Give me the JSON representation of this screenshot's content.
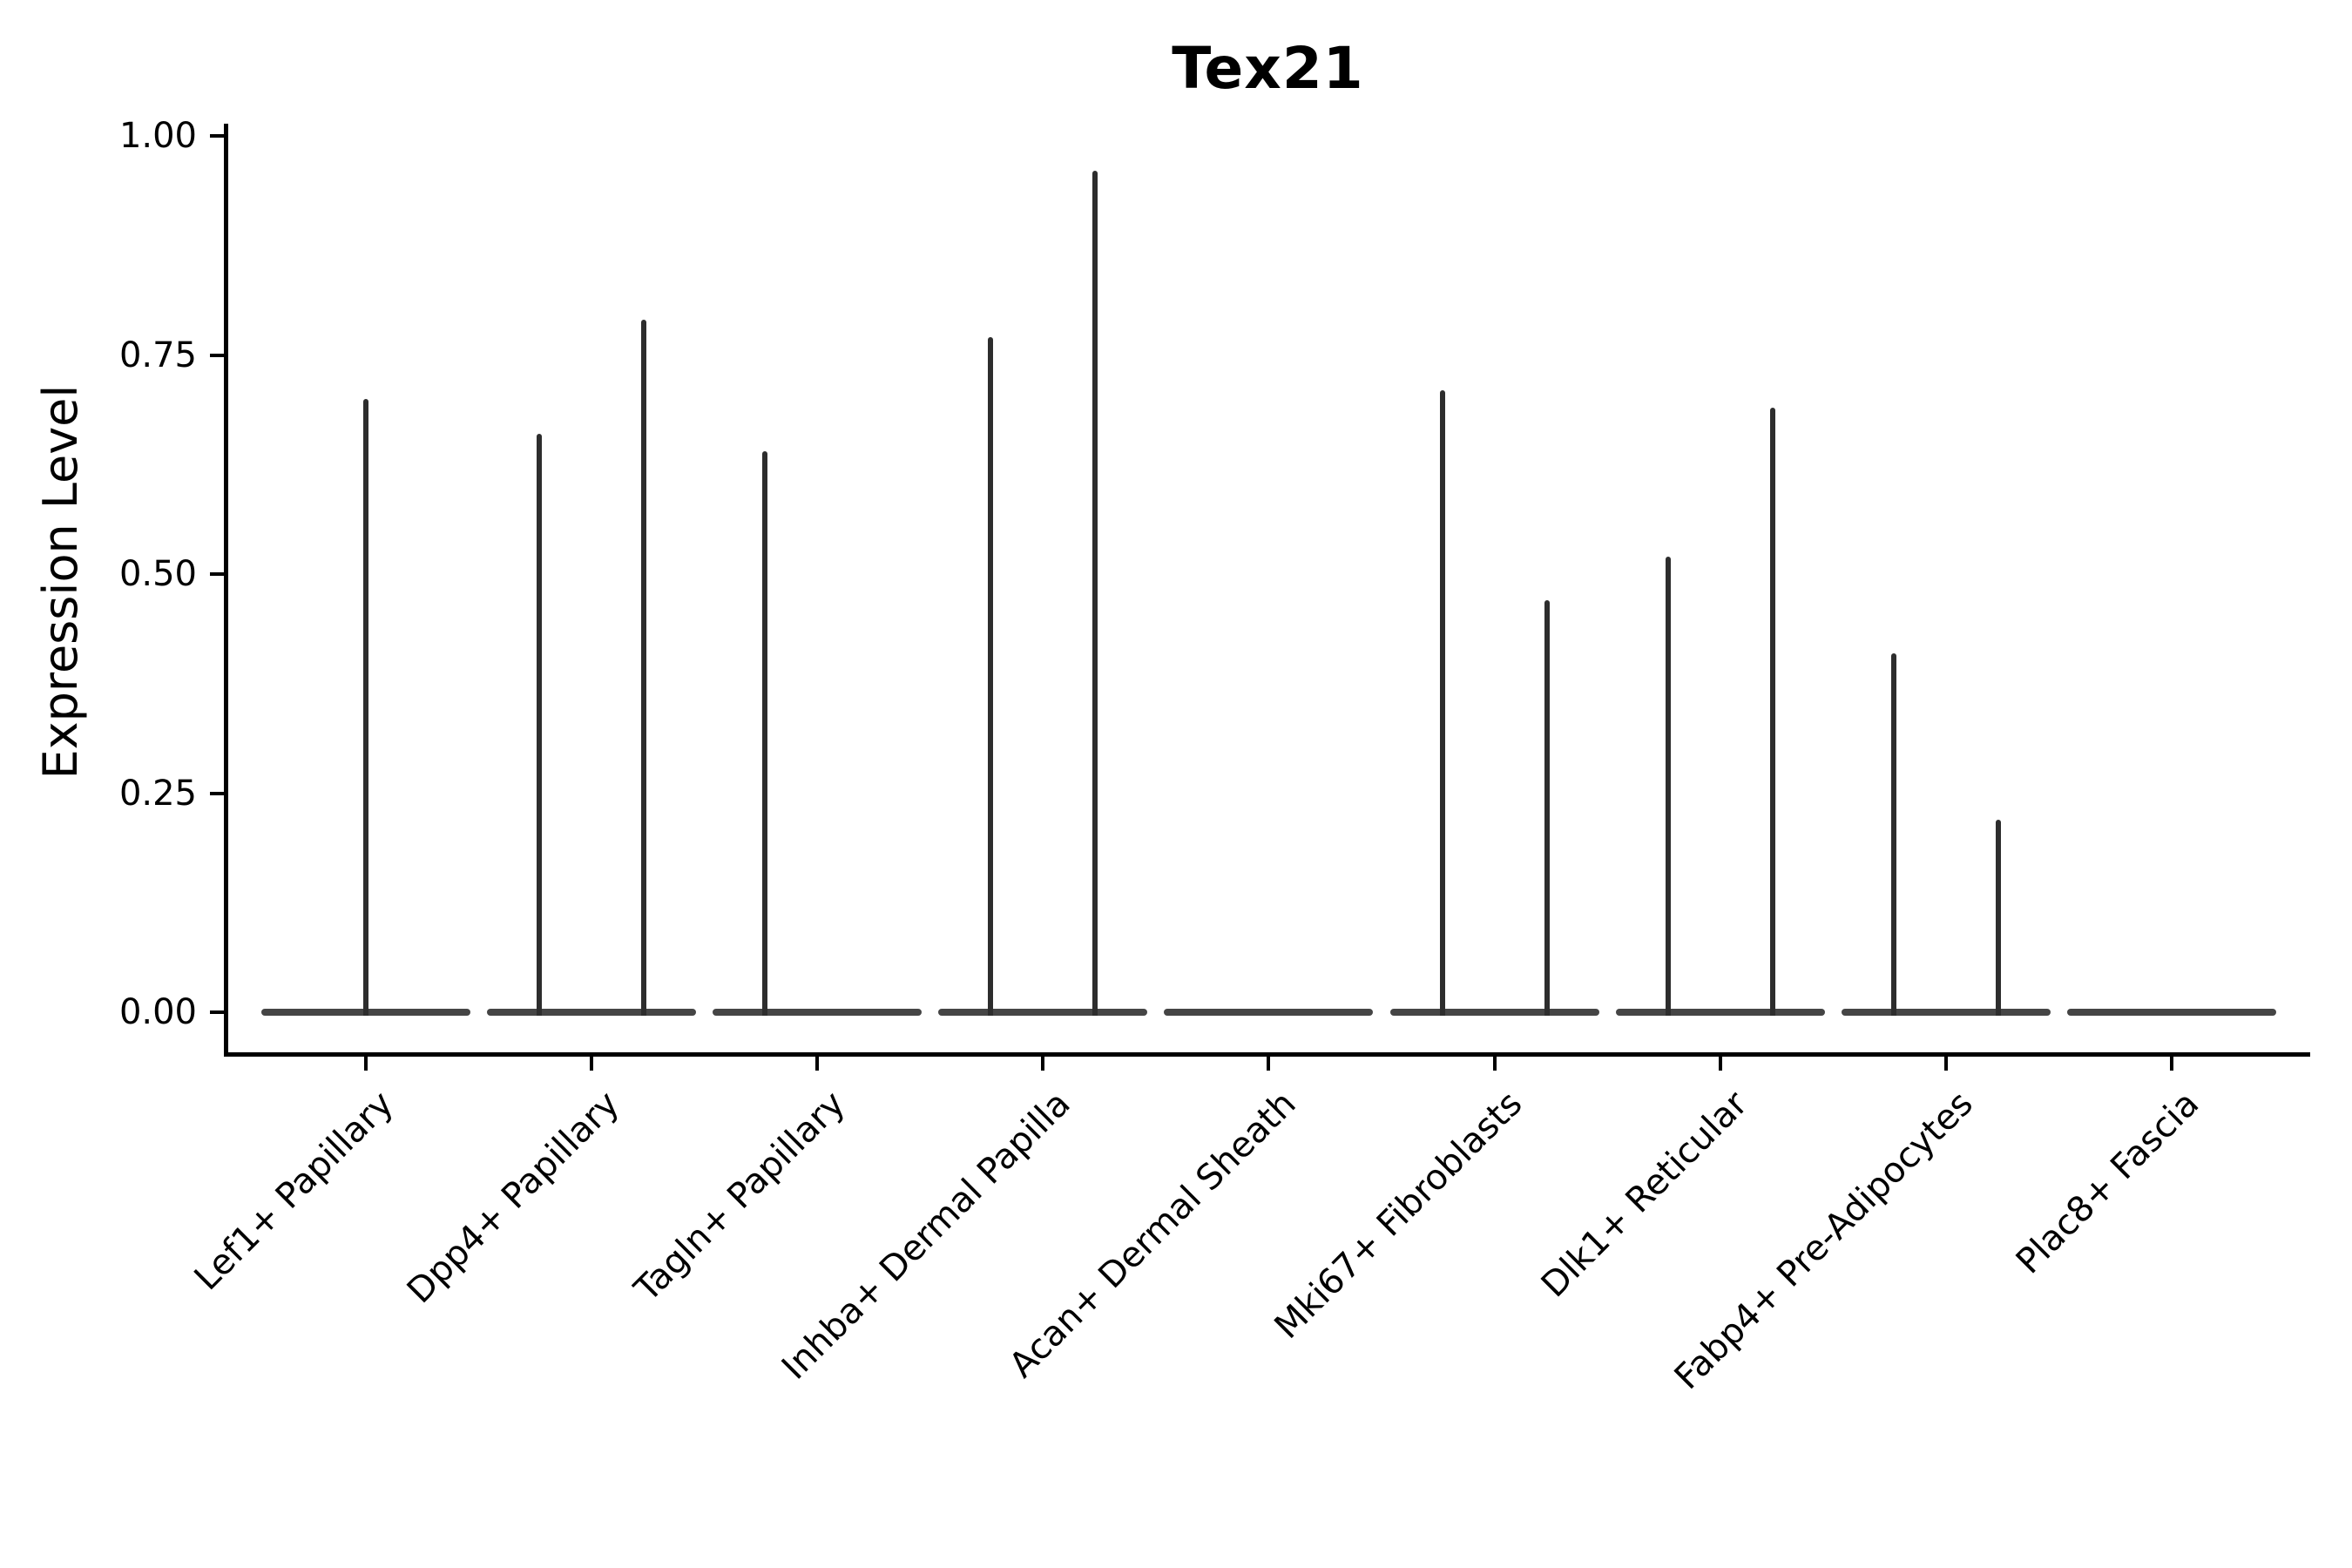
{
  "chart_data": {
    "type": "violin",
    "title": "Tex21",
    "xlabel": "",
    "ylabel": "Expression Level",
    "grid": false,
    "legend": null,
    "ylim": [
      -0.05,
      1.01
    ],
    "ytick_labels": [
      "1.00",
      "0.75",
      "0.50",
      "0.25",
      "0.00"
    ],
    "ytick_values": [
      1.0,
      0.75,
      0.5,
      0.25,
      0.0
    ],
    "colors": {
      "background": "#ffffff",
      "axis": "#000000",
      "text": "#000000",
      "violin_line": "#2d2d2d",
      "violin_base": "#454545"
    },
    "categories": [
      {
        "label": "Lef1+ Papillary",
        "violins": [
          {
            "slot": "center",
            "max_expression": 0.7
          }
        ]
      },
      {
        "label": "Dpp4+ Papillary",
        "violins": [
          {
            "slot": "left",
            "max_expression": 0.66
          },
          {
            "slot": "right",
            "max_expression": 0.79
          }
        ]
      },
      {
        "label": "Tagln+ Papillary",
        "violins": [
          {
            "slot": "left",
            "max_expression": 0.64
          }
        ]
      },
      {
        "label": "Inhba+ Dermal Papilla",
        "violins": [
          {
            "slot": "left",
            "max_expression": 0.77
          },
          {
            "slot": "right",
            "max_expression": 0.96
          }
        ]
      },
      {
        "label": "Acan+ Dermal Sheath",
        "violins": []
      },
      {
        "label": "Mki67+ Fibroblasts",
        "violins": [
          {
            "slot": "left",
            "max_expression": 0.71
          },
          {
            "slot": "right",
            "max_expression": 0.47
          }
        ]
      },
      {
        "label": "Dlk1+ Reticular",
        "violins": [
          {
            "slot": "left",
            "max_expression": 0.52
          },
          {
            "slot": "right",
            "max_expression": 0.69
          }
        ]
      },
      {
        "label": "Fabp4+ Pre-Adipocytes",
        "violins": [
          {
            "slot": "left",
            "max_expression": 0.41
          },
          {
            "slot": "right",
            "max_expression": 0.22
          }
        ]
      },
      {
        "label": "Plac8+ Fascia",
        "violins": []
      }
    ]
  }
}
